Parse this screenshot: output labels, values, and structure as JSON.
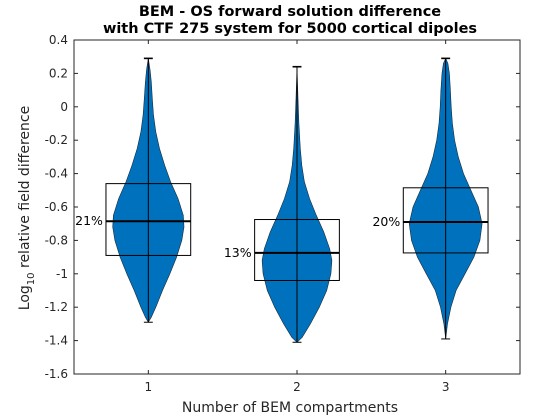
{
  "chart_data": {
    "type": "violin",
    "title_line1": "BEM - OS forward solution difference",
    "title_line2": "with CTF 275 system for 5000 cortical dipoles",
    "xlabel": "Number of BEM compartments",
    "ylabel": "Log",
    "ylabel_sub": "10",
    "ylabel_rest": " relative field difference",
    "xlim": [
      0.5,
      3.5
    ],
    "ylim": [
      -1.6,
      0.4
    ],
    "x_ticks": [
      1,
      2,
      3
    ],
    "x_tick_labels": [
      "1",
      "2",
      "3"
    ],
    "y_ticks": [
      -1.6,
      -1.4,
      -1.2,
      -1,
      -0.8,
      -0.6,
      -0.4,
      -0.2,
      0,
      0.2,
      0.4
    ],
    "y_tick_labels": [
      "-1.6",
      "-1.4",
      "-1.2",
      "-1",
      "-0.8",
      "-0.6",
      "-0.4",
      "-0.2",
      "0",
      "0.2",
      "0.4"
    ],
    "grid": false,
    "fill_color": "#0072BD",
    "groups": [
      {
        "x": 1,
        "min": -1.29,
        "max": 0.29,
        "q1": -0.89,
        "median": -0.685,
        "q3": -0.46,
        "percent_label": "21%",
        "density": [
          [
            -1.29,
            0
          ],
          [
            -1.26,
            0.02
          ],
          [
            -1.2,
            0.05
          ],
          [
            -1.1,
            0.095
          ],
          [
            -1.0,
            0.145
          ],
          [
            -0.9,
            0.19
          ],
          [
            -0.8,
            0.225
          ],
          [
            -0.72,
            0.24
          ],
          [
            -0.65,
            0.235
          ],
          [
            -0.55,
            0.2
          ],
          [
            -0.45,
            0.15
          ],
          [
            -0.35,
            0.11
          ],
          [
            -0.25,
            0.075
          ],
          [
            -0.15,
            0.05
          ],
          [
            -0.05,
            0.035
          ],
          [
            0.05,
            0.027
          ],
          [
            0.15,
            0.02
          ],
          [
            0.22,
            0.012
          ],
          [
            0.29,
            0
          ]
        ]
      },
      {
        "x": 2,
        "min": -1.41,
        "max": 0.24,
        "q1": -1.04,
        "median": -0.875,
        "q3": -0.675,
        "percent_label": "13%",
        "density": [
          [
            -1.41,
            0
          ],
          [
            -1.38,
            0.035
          ],
          [
            -1.3,
            0.09
          ],
          [
            -1.2,
            0.15
          ],
          [
            -1.1,
            0.2
          ],
          [
            -1.0,
            0.228
          ],
          [
            -0.92,
            0.235
          ],
          [
            -0.85,
            0.22
          ],
          [
            -0.75,
            0.18
          ],
          [
            -0.65,
            0.13
          ],
          [
            -0.55,
            0.085
          ],
          [
            -0.45,
            0.05
          ],
          [
            -0.35,
            0.032
          ],
          [
            -0.25,
            0.022
          ],
          [
            -0.1,
            0.013
          ],
          [
            0.05,
            0.007
          ],
          [
            0.24,
            0
          ]
        ]
      },
      {
        "x": 3,
        "min": -1.39,
        "max": 0.29,
        "q1": -0.875,
        "median": -0.69,
        "q3": -0.485,
        "percent_label": "20%",
        "density": [
          [
            -1.39,
            0
          ],
          [
            -1.3,
            0.012
          ],
          [
            -1.2,
            0.035
          ],
          [
            -1.1,
            0.07
          ],
          [
            -1.0,
            0.13
          ],
          [
            -0.9,
            0.19
          ],
          [
            -0.8,
            0.23
          ],
          [
            -0.7,
            0.245
          ],
          [
            -0.6,
            0.22
          ],
          [
            -0.5,
            0.17
          ],
          [
            -0.4,
            0.12
          ],
          [
            -0.3,
            0.085
          ],
          [
            -0.2,
            0.06
          ],
          [
            -0.1,
            0.045
          ],
          [
            0.0,
            0.037
          ],
          [
            0.1,
            0.032
          ],
          [
            0.2,
            0.025
          ],
          [
            0.26,
            0.015
          ],
          [
            0.29,
            0
          ]
        ]
      }
    ]
  }
}
